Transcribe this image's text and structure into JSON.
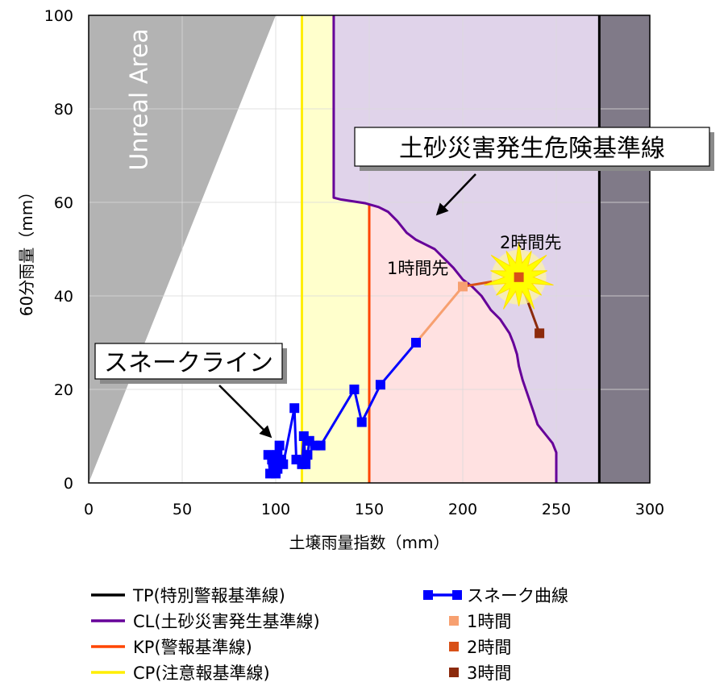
{
  "chart_data": {
    "type": "line",
    "xlabel": "土壌雨量指数（mm）",
    "ylabel": "60分雨量（mm）",
    "xlim": [
      0,
      300
    ],
    "ylim": [
      0,
      100
    ],
    "x_ticks": [
      "0",
      "50",
      "100",
      "150",
      "200",
      "250",
      "300"
    ],
    "y_ticks": [
      "0",
      "20",
      "40",
      "60",
      "80",
      "100"
    ],
    "grid": true,
    "regions": {
      "unreal_area": {
        "label": "Unreal Area",
        "color": "#b3b3b3",
        "boundary": [
          [
            0,
            0
          ],
          [
            100,
            100
          ]
        ]
      },
      "cp_to_cl": {
        "color": "#ffffcc"
      },
      "kp_to_cl": {
        "color": "#ffe1e1"
      },
      "cl_to_tp": {
        "color": "#e0d3ea"
      },
      "beyond_tp": {
        "color": "#807a88"
      }
    },
    "lines": {
      "TP": {
        "x": 273,
        "color": "#000000"
      },
      "CP": {
        "x": 114,
        "color": "#ffee00"
      },
      "KP": {
        "x": 150,
        "color": "#ff4500"
      },
      "CL": {
        "color": "#660099",
        "points": [
          [
            131,
            100
          ],
          [
            131,
            61
          ],
          [
            135,
            60.6
          ],
          [
            140,
            60.3
          ],
          [
            148,
            59.8
          ],
          [
            155,
            59
          ],
          [
            160,
            58
          ],
          [
            165,
            56
          ],
          [
            170,
            53.5
          ],
          [
            175,
            52
          ],
          [
            180,
            51
          ],
          [
            185,
            50
          ],
          [
            190,
            48
          ],
          [
            195,
            46
          ],
          [
            200,
            43.5
          ],
          [
            205,
            42
          ],
          [
            210,
            40
          ],
          [
            215,
            37
          ],
          [
            220,
            35
          ],
          [
            225,
            32
          ],
          [
            227,
            30
          ],
          [
            229,
            27.5
          ],
          [
            230,
            25
          ],
          [
            232,
            22
          ],
          [
            235,
            18.5
          ],
          [
            238,
            15
          ],
          [
            240,
            12.5
          ],
          [
            242,
            11.5
          ],
          [
            245,
            10
          ],
          [
            248,
            8.5
          ],
          [
            250,
            6.5
          ],
          [
            250,
            0
          ]
        ]
      }
    },
    "series": [
      {
        "name": "スネーク曲線",
        "color": "#0000ff",
        "marker": "square",
        "points": [
          [
            96,
            6
          ],
          [
            97,
            2
          ],
          [
            98,
            5
          ],
          [
            99,
            4
          ],
          [
            100,
            2
          ],
          [
            101,
            6
          ],
          [
            101,
            3
          ],
          [
            102,
            8
          ],
          [
            103,
            5
          ],
          [
            104,
            4
          ],
          [
            110,
            16
          ],
          [
            111,
            5
          ],
          [
            114,
            4
          ],
          [
            115,
            10
          ],
          [
            116,
            4
          ],
          [
            117,
            6
          ],
          [
            118,
            9
          ],
          [
            121,
            8
          ],
          [
            124,
            8
          ],
          [
            142,
            20
          ],
          [
            146,
            13
          ],
          [
            156,
            21
          ],
          [
            175,
            30
          ]
        ]
      },
      {
        "name": "1時間",
        "color": "#f7a070",
        "marker": "square",
        "points": [
          [
            175,
            30
          ],
          [
            200,
            42
          ]
        ]
      },
      {
        "name": "2時間",
        "color": "#d85018",
        "marker": "square",
        "points": [
          [
            200,
            42
          ],
          [
            230,
            44
          ]
        ]
      },
      {
        "name": "3時間",
        "color": "#8c2a0c",
        "marker": "square",
        "points": [
          [
            230,
            44
          ],
          [
            241,
            32
          ]
        ]
      }
    ],
    "annotations": {
      "hazard_line_label": "土砂災害発生危険基準線",
      "snake_line_label": "スネークライン",
      "one_hour_ahead": "1時間先",
      "two_hours_ahead": "2時間先"
    },
    "legend": {
      "placement": "bottom",
      "left": [
        {
          "label": "TP(特別警報基準線)",
          "color": "#000000"
        },
        {
          "label": "CL(土砂災害発生基準線)",
          "color": "#660099"
        },
        {
          "label": "KP(警報基準線)",
          "color": "#ff4500"
        },
        {
          "label": "CP(注意報基準線)",
          "color": "#ffee00"
        }
      ],
      "right": [
        {
          "label": "スネーク曲線",
          "color": "#0000ff"
        },
        {
          "label": "1時間",
          "color": "#f7a070"
        },
        {
          "label": "2時間",
          "color": "#d85018"
        },
        {
          "label": "3時間",
          "color": "#8c2a0c"
        }
      ]
    }
  }
}
